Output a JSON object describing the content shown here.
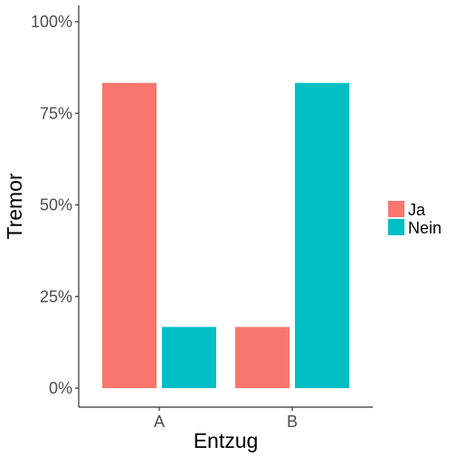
{
  "chart_data": {
    "type": "bar",
    "categories": [
      "A",
      "B"
    ],
    "series": [
      {
        "name": "Ja",
        "values": [
          0.833,
          0.167
        ],
        "color": "#F8766D"
      },
      {
        "name": "Nein",
        "values": [
          0.167,
          0.833
        ],
        "color": "#00BFC4"
      }
    ],
    "xlabel": "Entzug",
    "ylabel": "Tremor",
    "ylim": [
      0,
      1.04
    ],
    "yticks": [
      {
        "value": 0,
        "label": "0%"
      },
      {
        "value": 0.25,
        "label": "25%"
      },
      {
        "value": 0.5,
        "label": "50%"
      },
      {
        "value": 0.75,
        "label": "75%"
      },
      {
        "value": 1.0,
        "label": "100%"
      }
    ],
    "grid": false,
    "legend_position": "right"
  }
}
